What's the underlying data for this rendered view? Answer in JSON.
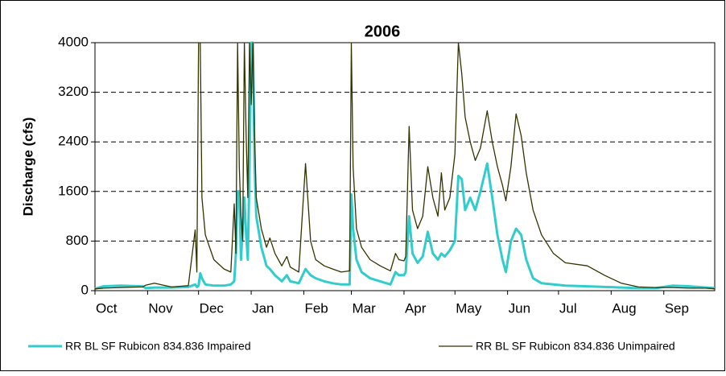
{
  "chart_data": {
    "type": "line",
    "title": "2006",
    "y_label": "Discharge (cfs)",
    "x": [
      0,
      5,
      15,
      28,
      30,
      35,
      45,
      55,
      59,
      60,
      61,
      62,
      63,
      65,
      70,
      76,
      80,
      82,
      83,
      84,
      85,
      86,
      87,
      88,
      89,
      90,
      91,
      92,
      93,
      94,
      95,
      98,
      101,
      103,
      106,
      110,
      113,
      115,
      120,
      124,
      127,
      130,
      135,
      140,
      145,
      150,
      151,
      152,
      154,
      157,
      162,
      168,
      174,
      177,
      179,
      182,
      183,
      185,
      187,
      190,
      193,
      196,
      199,
      202,
      204,
      206,
      209,
      212,
      214,
      216,
      218,
      221,
      224,
      227,
      231,
      234,
      237,
      240,
      242,
      245,
      248,
      251,
      254,
      258,
      263,
      270,
      277,
      290,
      300,
      310,
      320,
      330,
      340,
      350,
      360,
      365
    ],
    "series": [
      {
        "name": "RR BL SF Rubicon 834.836 Impaired",
        "color": "#33cccc",
        "values": [
          30,
          70,
          80,
          70,
          40,
          50,
          50,
          60,
          100,
          60,
          80,
          280,
          200,
          100,
          80,
          80,
          100,
          150,
          600,
          1600,
          1600,
          500,
          1000,
          1500,
          900,
          500,
          2000,
          4000,
          4000,
          2000,
          1200,
          700,
          400,
          350,
          250,
          150,
          250,
          150,
          120,
          350,
          250,
          200,
          150,
          120,
          100,
          100,
          1550,
          1000,
          500,
          300,
          200,
          150,
          100,
          300,
          250,
          250,
          300,
          1200,
          600,
          450,
          550,
          950,
          600,
          500,
          600,
          550,
          650,
          800,
          1850,
          1800,
          1300,
          1500,
          1300,
          1600,
          2050,
          1500,
          900,
          500,
          300,
          800,
          1000,
          900,
          500,
          200,
          120,
          100,
          80,
          70,
          60,
          50,
          40,
          40,
          80,
          70,
          50,
          40
        ]
      },
      {
        "name": "RR BL SF Rubicon 834.836 Unimpaired",
        "color": "#333300",
        "values": [
          30,
          40,
          50,
          60,
          90,
          120,
          60,
          80,
          980,
          300,
          4000,
          4000,
          1500,
          900,
          500,
          350,
          300,
          1400,
          600,
          4000,
          2000,
          1200,
          800,
          4000,
          2500,
          1500,
          4000,
          3000,
          4000,
          2500,
          1500,
          1000,
          700,
          850,
          600,
          400,
          550,
          380,
          300,
          2050,
          800,
          500,
          400,
          350,
          300,
          320,
          4000,
          2000,
          1000,
          700,
          500,
          400,
          320,
          600,
          500,
          480,
          550,
          2650,
          1300,
          1000,
          1200,
          2000,
          1500,
          1200,
          1900,
          1300,
          1500,
          2200,
          4000,
          3500,
          2800,
          2400,
          2100,
          2300,
          2900,
          2400,
          2000,
          1700,
          1450,
          2000,
          2850,
          2500,
          1900,
          1300,
          900,
          600,
          450,
          400,
          250,
          120,
          60,
          50,
          50,
          40,
          40,
          30
        ]
      }
    ],
    "xlim": [
      0,
      365
    ],
    "xticks": [
      {
        "value": 0,
        "label": "Oct"
      },
      {
        "value": 31,
        "label": "Nov"
      },
      {
        "value": 61,
        "label": "Dec"
      },
      {
        "value": 92,
        "label": "Jan"
      },
      {
        "value": 123,
        "label": "Feb"
      },
      {
        "value": 151,
        "label": "Mar"
      },
      {
        "value": 182,
        "label": "Apr"
      },
      {
        "value": 212,
        "label": "May"
      },
      {
        "value": 243,
        "label": "Jun"
      },
      {
        "value": 273,
        "label": "Jul"
      },
      {
        "value": 304,
        "label": "Aug"
      },
      {
        "value": 335,
        "label": "Sep"
      }
    ],
    "ylim": [
      0,
      4000
    ],
    "yticks": [
      0,
      800,
      1600,
      2400,
      3200,
      4000
    ],
    "grid": true
  }
}
